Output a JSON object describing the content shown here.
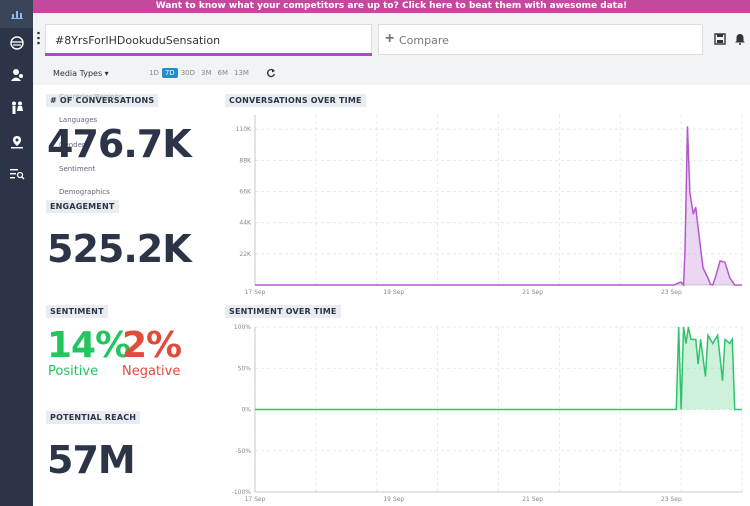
{
  "banner": {
    "text": "Want to know what your competitors are up to? Click here to beat them with awesome data!"
  },
  "sidebar": {
    "items": [
      {
        "icon": "bar-chart-icon"
      },
      {
        "icon": "sentiment-face-icon"
      },
      {
        "icon": "influencers-icon"
      },
      {
        "icon": "demographics-icon"
      },
      {
        "icon": "location-pin-icon"
      },
      {
        "icon": "list-search-icon"
      }
    ]
  },
  "search": {
    "value": "#8YrsForIHDookuduSensation"
  },
  "compare": {
    "placeholder": "Compare"
  },
  "filters": {
    "media_types": "Media Types",
    "ranges": [
      "1D",
      "7D",
      "30D",
      "3M",
      "6M",
      "13M"
    ],
    "active_range": "7D"
  },
  "conversations": {
    "label": "# OF CONVERSATIONS",
    "value": "476.7K",
    "ghost_menu": [
      "Countries/Regions",
      "Languages",
      "Gender",
      "Sentiment",
      "Demographics"
    ]
  },
  "engagement": {
    "label": "ENGAGEMENT",
    "value": "525.2K"
  },
  "sentiment": {
    "label": "SENTIMENT",
    "positive_pct": "14%",
    "positive_label": "Positive",
    "negative_pct": "2%",
    "negative_label": "Negative"
  },
  "reach": {
    "label": "POTENTIAL REACH",
    "value": "57M"
  },
  "colors": {
    "sidebar": "#2b3547",
    "banner": "#c4499e",
    "accent": "#a94ec6",
    "positive": "#22c55e",
    "negative": "#e04b3a",
    "range_active": "#1a8fd8"
  },
  "chart_data": [
    {
      "type": "area",
      "title": "CONVERSATIONS OVER TIME",
      "x_labels": [
        "17 Sep",
        "19 Sep",
        "21 Sep",
        "23 Sep"
      ],
      "y_ticks": [
        "22K",
        "44K",
        "66K",
        "88K",
        "110K"
      ],
      "ylim": [
        0,
        120000
      ],
      "series": [
        {
          "values": [
            [
              0,
              0
            ],
            [
              0.86,
              0
            ],
            [
              0.87,
              1500
            ],
            [
              0.875,
              2000
            ],
            [
              0.88,
              0
            ],
            [
              0.883,
              25000
            ],
            [
              0.888,
              112000
            ],
            [
              0.893,
              65000
            ],
            [
              0.9,
              50000
            ],
            [
              0.905,
              55000
            ],
            [
              0.91,
              40000
            ],
            [
              0.92,
              12000
            ],
            [
              0.93,
              5000
            ],
            [
              0.935,
              500
            ],
            [
              0.94,
              0
            ],
            [
              0.945,
              5000
            ],
            [
              0.955,
              17000
            ],
            [
              0.965,
              16000
            ],
            [
              0.975,
              5000
            ],
            [
              0.985,
              0
            ],
            [
              1,
              0
            ]
          ]
        }
      ]
    },
    {
      "type": "area",
      "title": "SENTIMENT OVER TIME",
      "x_labels": [
        "17 Sep",
        "19 Sep",
        "21 Sep",
        "23 Sep"
      ],
      "y_ticks": [
        "100%",
        "50%",
        "0%",
        "-50%",
        "-100%"
      ],
      "ylim": [
        -100,
        100
      ],
      "series": [
        {
          "values": [
            [
              0,
              0
            ],
            [
              0.86,
              0
            ],
            [
              0.865,
              0
            ],
            [
              0.87,
              100
            ],
            [
              0.875,
              0
            ],
            [
              0.88,
              100
            ],
            [
              0.885,
              80
            ],
            [
              0.89,
              100
            ],
            [
              0.895,
              85
            ],
            [
              0.905,
              85
            ],
            [
              0.91,
              55
            ],
            [
              0.915,
              85
            ],
            [
              0.925,
              40
            ],
            [
              0.93,
              90
            ],
            [
              0.94,
              80
            ],
            [
              0.95,
              90
            ],
            [
              0.96,
              35
            ],
            [
              0.965,
              85
            ],
            [
              0.975,
              80
            ],
            [
              0.98,
              85
            ],
            [
              0.985,
              0
            ],
            [
              1,
              0
            ]
          ]
        }
      ]
    }
  ]
}
